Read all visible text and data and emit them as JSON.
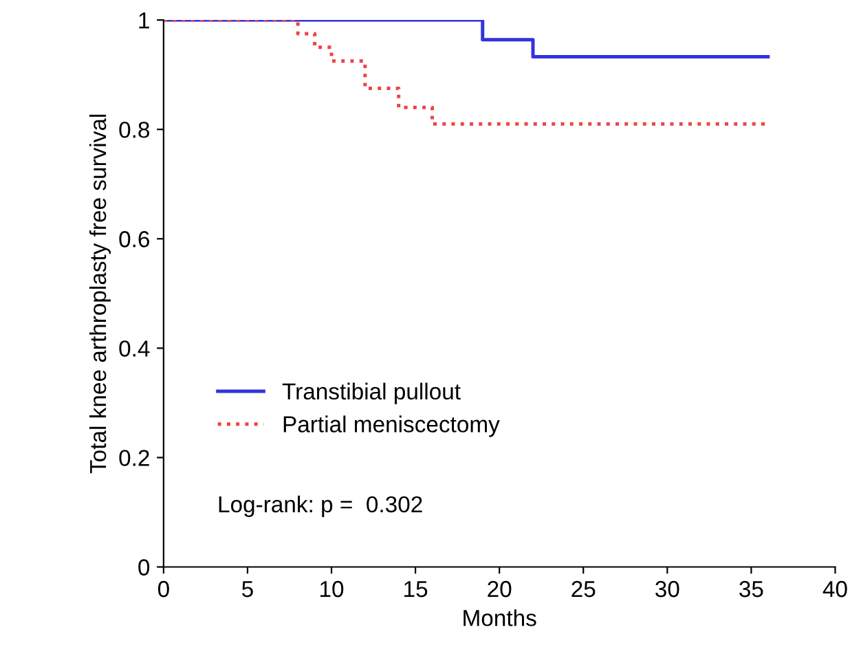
{
  "chart_data": {
    "type": "step",
    "xlabel": "Months",
    "ylabel": "Total knee arthroplasty free survival",
    "series": [
      {
        "name": "Transtibial pullout",
        "color": "#3333dd",
        "line_style": "solid",
        "x": [
          0,
          19,
          22,
          36
        ],
        "values": [
          1,
          0.964,
          0.933,
          0.933
        ]
      },
      {
        "name": "Partial meniscectomy",
        "color": "#ee4444",
        "line_style": "dotted",
        "x": [
          0,
          8,
          9,
          10,
          12,
          14,
          16,
          36
        ],
        "values": [
          1,
          0.975,
          0.95,
          0.925,
          0.875,
          0.84,
          0.81,
          0.81
        ]
      }
    ],
    "xlim": [
      0,
      40
    ],
    "xticks": [
      0,
      5,
      10,
      15,
      20,
      25,
      30,
      35,
      40
    ],
    "ylim": [
      0,
      1
    ],
    "yticks": [
      0,
      0.2,
      0.4,
      0.6,
      0.8,
      1
    ],
    "grid": false,
    "legend": "bottom left",
    "annotations": [
      "Log-rank: p =  0.302"
    ]
  }
}
